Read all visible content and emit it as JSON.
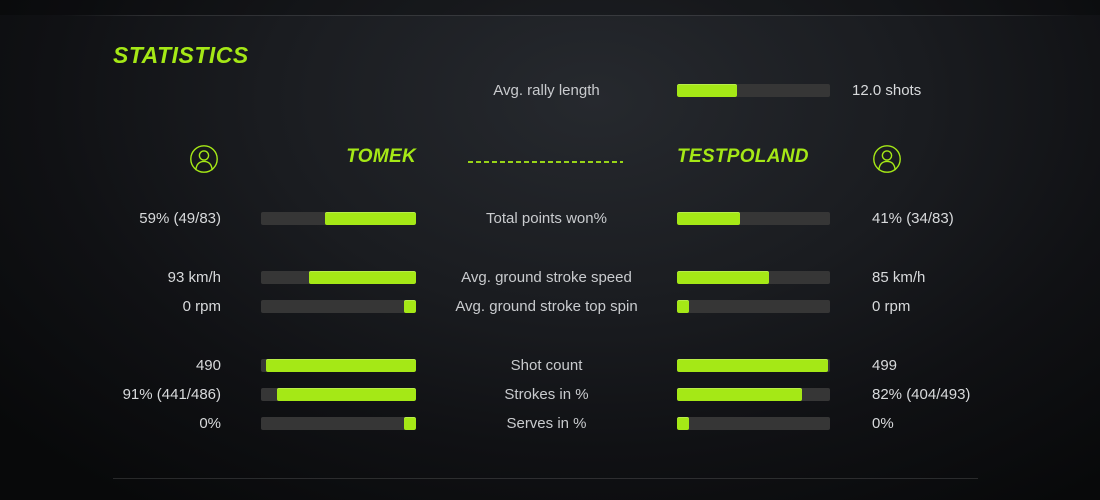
{
  "title": "STATISTICS",
  "colors": {
    "accent_green": "#a5e816",
    "bar_track": "#363636",
    "label_text": "#c9cbce",
    "value_text": "#d8dadc"
  },
  "header": {
    "left_player": "TOMEK",
    "right_player": "TESTPOLAND",
    "left_icon": "user-circle-icon",
    "right_icon": "user-circle-icon"
  },
  "summary": {
    "label": "Avg. rally length",
    "value": "12.0 shots",
    "fill_pct": 39
  },
  "rows": [
    {
      "label": "Total points won%",
      "left_value": "59% (49/83)",
      "right_value": "41% (34/83)",
      "left_fill_pct": 59,
      "right_fill_pct": 41
    },
    {
      "label": "Avg. ground stroke speed",
      "left_value": "93 km/h",
      "right_value": "85 km/h",
      "left_fill_pct": 69,
      "right_fill_pct": 60
    },
    {
      "label": "Avg. ground stroke top spin",
      "left_value": "0 rpm",
      "right_value": "0 rpm",
      "left_fill_pct": 8,
      "right_fill_pct": 8
    },
    {
      "label": "Shot count",
      "left_value": "490",
      "right_value": "499",
      "left_fill_pct": 97,
      "right_fill_pct": 99
    },
    {
      "label": "Strokes in %",
      "left_value": "91% (441/486)",
      "right_value": "82% (404/493)",
      "left_fill_pct": 90,
      "right_fill_pct": 82
    },
    {
      "label": "Serves in %",
      "left_value": "0%",
      "right_value": "0%",
      "left_fill_pct": 8,
      "right_fill_pct": 8
    }
  ]
}
